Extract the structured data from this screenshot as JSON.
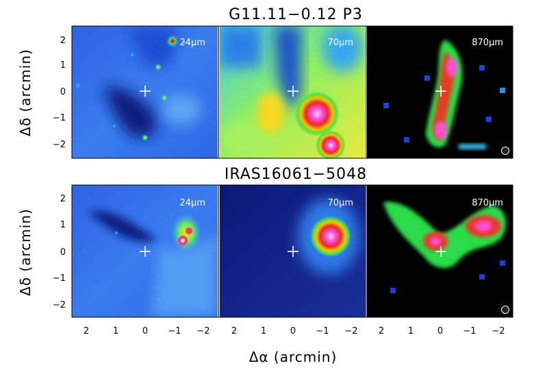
{
  "figure": {
    "rows": [
      {
        "title": "G11.11−0.12 P3",
        "panels": [
          {
            "band_label": "24μm",
            "cmap": "blue-low"
          },
          {
            "band_label": "70μm",
            "cmap": "green-high"
          },
          {
            "band_label": "870μm",
            "cmap": "black-ridge",
            "beam": true
          }
        ]
      },
      {
        "title": "IRAS16061−5048",
        "panels": [
          {
            "band_label": "24μm",
            "cmap": "blue-low"
          },
          {
            "band_label": "70μm",
            "cmap": "dark-blue"
          },
          {
            "band_label": "870μm",
            "cmap": "black-ridge",
            "beam": true
          }
        ]
      }
    ],
    "y_label": "Δδ  (arcmin)",
    "x_label": "Δα  (arcmin)",
    "y_ticks": [
      "2",
      "1",
      "0",
      "−1",
      "−2"
    ],
    "x_ticks": [
      "2",
      "1",
      "0",
      "−1",
      "−2"
    ],
    "colors": {
      "blue": "#2e6ee8",
      "dark_blue": "#0c1c7a",
      "green": "#58e84a",
      "red": "#e83020",
      "magenta": "#ff4fd8",
      "white": "#ffffff",
      "black": "#000000"
    }
  }
}
